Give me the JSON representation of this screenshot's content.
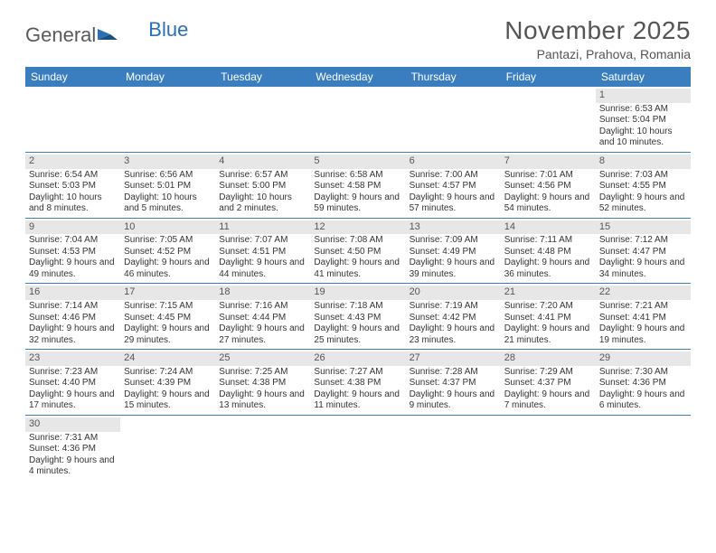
{
  "logo": {
    "text1": "General",
    "text2": "Blue",
    "color1": "#5a5a5a",
    "color2": "#2d6fb5"
  },
  "title": "November 2025",
  "location": "Pantazi, Prahova, Romania",
  "header_bg": "#3a7ebf",
  "daynum_bg": "#e7e7e7",
  "text_color": "#333333",
  "weekdays": [
    "Sunday",
    "Monday",
    "Tuesday",
    "Wednesday",
    "Thursday",
    "Friday",
    "Saturday"
  ],
  "weeks": [
    [
      null,
      null,
      null,
      null,
      null,
      null,
      {
        "n": "1",
        "sr": "6:53 AM",
        "ss": "5:04 PM",
        "dl": "10 hours and 10 minutes."
      }
    ],
    [
      {
        "n": "2",
        "sr": "6:54 AM",
        "ss": "5:03 PM",
        "dl": "10 hours and 8 minutes."
      },
      {
        "n": "3",
        "sr": "6:56 AM",
        "ss": "5:01 PM",
        "dl": "10 hours and 5 minutes."
      },
      {
        "n": "4",
        "sr": "6:57 AM",
        "ss": "5:00 PM",
        "dl": "10 hours and 2 minutes."
      },
      {
        "n": "5",
        "sr": "6:58 AM",
        "ss": "4:58 PM",
        "dl": "9 hours and 59 minutes."
      },
      {
        "n": "6",
        "sr": "7:00 AM",
        "ss": "4:57 PM",
        "dl": "9 hours and 57 minutes."
      },
      {
        "n": "7",
        "sr": "7:01 AM",
        "ss": "4:56 PM",
        "dl": "9 hours and 54 minutes."
      },
      {
        "n": "8",
        "sr": "7:03 AM",
        "ss": "4:55 PM",
        "dl": "9 hours and 52 minutes."
      }
    ],
    [
      {
        "n": "9",
        "sr": "7:04 AM",
        "ss": "4:53 PM",
        "dl": "9 hours and 49 minutes."
      },
      {
        "n": "10",
        "sr": "7:05 AM",
        "ss": "4:52 PM",
        "dl": "9 hours and 46 minutes."
      },
      {
        "n": "11",
        "sr": "7:07 AM",
        "ss": "4:51 PM",
        "dl": "9 hours and 44 minutes."
      },
      {
        "n": "12",
        "sr": "7:08 AM",
        "ss": "4:50 PM",
        "dl": "9 hours and 41 minutes."
      },
      {
        "n": "13",
        "sr": "7:09 AM",
        "ss": "4:49 PM",
        "dl": "9 hours and 39 minutes."
      },
      {
        "n": "14",
        "sr": "7:11 AM",
        "ss": "4:48 PM",
        "dl": "9 hours and 36 minutes."
      },
      {
        "n": "15",
        "sr": "7:12 AM",
        "ss": "4:47 PM",
        "dl": "9 hours and 34 minutes."
      }
    ],
    [
      {
        "n": "16",
        "sr": "7:14 AM",
        "ss": "4:46 PM",
        "dl": "9 hours and 32 minutes."
      },
      {
        "n": "17",
        "sr": "7:15 AM",
        "ss": "4:45 PM",
        "dl": "9 hours and 29 minutes."
      },
      {
        "n": "18",
        "sr": "7:16 AM",
        "ss": "4:44 PM",
        "dl": "9 hours and 27 minutes."
      },
      {
        "n": "19",
        "sr": "7:18 AM",
        "ss": "4:43 PM",
        "dl": "9 hours and 25 minutes."
      },
      {
        "n": "20",
        "sr": "7:19 AM",
        "ss": "4:42 PM",
        "dl": "9 hours and 23 minutes."
      },
      {
        "n": "21",
        "sr": "7:20 AM",
        "ss": "4:41 PM",
        "dl": "9 hours and 21 minutes."
      },
      {
        "n": "22",
        "sr": "7:21 AM",
        "ss": "4:41 PM",
        "dl": "9 hours and 19 minutes."
      }
    ],
    [
      {
        "n": "23",
        "sr": "7:23 AM",
        "ss": "4:40 PM",
        "dl": "9 hours and 17 minutes."
      },
      {
        "n": "24",
        "sr": "7:24 AM",
        "ss": "4:39 PM",
        "dl": "9 hours and 15 minutes."
      },
      {
        "n": "25",
        "sr": "7:25 AM",
        "ss": "4:38 PM",
        "dl": "9 hours and 13 minutes."
      },
      {
        "n": "26",
        "sr": "7:27 AM",
        "ss": "4:38 PM",
        "dl": "9 hours and 11 minutes."
      },
      {
        "n": "27",
        "sr": "7:28 AM",
        "ss": "4:37 PM",
        "dl": "9 hours and 9 minutes."
      },
      {
        "n": "28",
        "sr": "7:29 AM",
        "ss": "4:37 PM",
        "dl": "9 hours and 7 minutes."
      },
      {
        "n": "29",
        "sr": "7:30 AM",
        "ss": "4:36 PM",
        "dl": "9 hours and 6 minutes."
      }
    ],
    [
      {
        "n": "30",
        "sr": "7:31 AM",
        "ss": "4:36 PM",
        "dl": "9 hours and 4 minutes."
      },
      null,
      null,
      null,
      null,
      null,
      null
    ]
  ],
  "labels": {
    "sunrise": "Sunrise: ",
    "sunset": "Sunset: ",
    "daylight": "Daylight: "
  }
}
